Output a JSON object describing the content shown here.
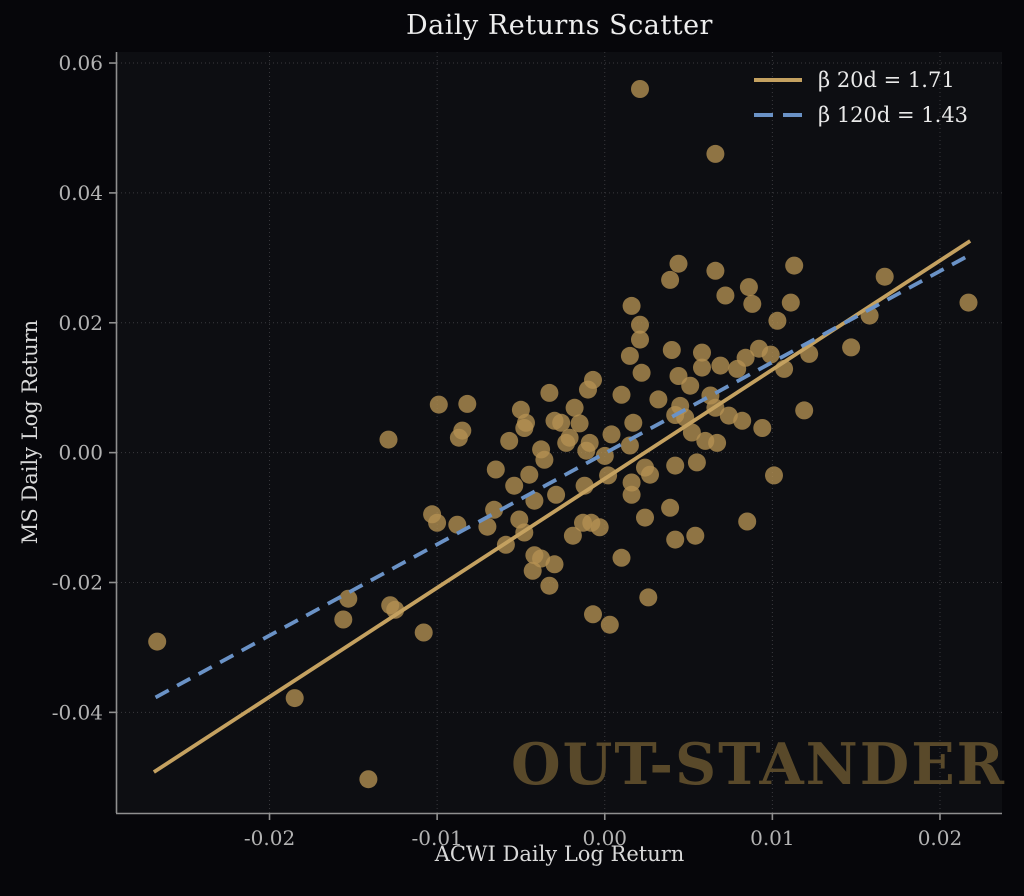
{
  "title": "Daily Returns Scatter",
  "watermark": "OUT-STANDER",
  "colors": {
    "background": "#06060a",
    "plot_background": "#0d0e12",
    "grid": "#3a3a3e",
    "spine": "#8f8f8f",
    "tick_label": "#b3b3b3",
    "axis_label": "#d9d9d9",
    "title": "#ededed",
    "point": "#b59152",
    "beta20_line": "#c4a160",
    "beta120_line": "#6a92c6",
    "watermark": "#59492a"
  },
  "chart_data": {
    "type": "scatter",
    "title": "Daily Returns Scatter",
    "xlabel": "ACWI Daily Log Return",
    "ylabel": "MS Daily Log Return",
    "xlim": [
      -0.0291,
      0.0237
    ],
    "ylim": [
      -0.0555,
      0.0617
    ],
    "xticks": [
      -0.02,
      -0.01,
      0.0,
      0.01,
      0.02
    ],
    "xtick_labels": [
      "-0.02",
      "-0.01",
      "0.00",
      "0.01",
      "0.02"
    ],
    "yticks": [
      0.06,
      0.04,
      0.02,
      0.0,
      -0.02,
      -0.04
    ],
    "ytick_labels": [
      "0.06",
      "0.04",
      "0.02",
      "0.00",
      "-0.02",
      "-0.04"
    ],
    "grid": true,
    "legend_position": "upper right",
    "point_color": "#b59152",
    "point_opacity": 0.78,
    "points": [
      [
        0.0021,
        0.056
      ],
      [
        0.0044,
        0.0291
      ],
      [
        0.0039,
        0.0266
      ],
      [
        0.0016,
        0.0226
      ],
      [
        0.0021,
        0.0197
      ],
      [
        0.0021,
        0.0174
      ],
      [
        0.0015,
        0.0149
      ],
      [
        0.004,
        0.0158
      ],
      [
        0.0058,
        0.0154
      ],
      [
        0.0022,
        0.0123
      ],
      [
        0.0044,
        0.0118
      ],
      [
        0.0051,
        0.0103
      ],
      [
        -0.0007,
        0.0112
      ],
      [
        -0.001,
        0.0097
      ],
      [
        -0.0033,
        0.0092
      ],
      [
        0.001,
        0.0089
      ],
      [
        -0.0099,
        0.0074
      ],
      [
        -0.0082,
        0.0075
      ],
      [
        -0.005,
        0.0066
      ],
      [
        -0.0018,
        0.0069
      ],
      [
        0.0032,
        0.0082
      ],
      [
        0.0045,
        0.0072
      ],
      [
        0.0058,
        0.0131
      ],
      [
        -0.0047,
        0.0046
      ],
      [
        -0.003,
        0.0049
      ],
      [
        0.0017,
        0.0046
      ],
      [
        -0.0085,
        0.0034
      ],
      [
        0.0042,
        0.0058
      ],
      [
        0.0063,
        0.0088
      ],
      [
        -0.0087,
        0.0023
      ],
      [
        -0.0057,
        0.0018
      ],
      [
        -0.0048,
        0.0038
      ],
      [
        -0.0026,
        0.0046
      ],
      [
        -0.0023,
        0.0015
      ],
      [
        -0.0015,
        0.0045
      ],
      [
        0.0004,
        0.0028
      ],
      [
        0.0015,
        0.0011
      ],
      [
        0.0048,
        0.0054
      ],
      [
        0.0052,
        0.0031
      ],
      [
        0.006,
        0.0018
      ],
      [
        0.0066,
        0.046
      ],
      [
        0.0066,
        0.028
      ],
      [
        0.0072,
        0.0242
      ],
      [
        0.0086,
        0.0255
      ],
      [
        0.0088,
        0.0229
      ],
      [
        0.0113,
        0.0288
      ],
      [
        0.0111,
        0.0231
      ],
      [
        0.0103,
        0.0203
      ],
      [
        0.0167,
        0.0271
      ],
      [
        0.0158,
        0.0211
      ],
      [
        0.0217,
        0.0231
      ],
      [
        0.0092,
        0.016
      ],
      [
        0.0084,
        0.0146
      ],
      [
        0.0099,
        0.0151
      ],
      [
        0.0069,
        0.0134
      ],
      [
        0.0079,
        0.0129
      ],
      [
        0.0107,
        0.0129
      ],
      [
        0.0122,
        0.0152
      ],
      [
        0.0147,
        0.0162
      ],
      [
        0.0066,
        0.0069
      ],
      [
        0.0074,
        0.0057
      ],
      [
        0.0082,
        0.0049
      ],
      [
        0.0094,
        0.0038
      ],
      [
        0.0119,
        0.0065
      ],
      [
        -0.0038,
        0.0005
      ],
      [
        -0.0021,
        0.0023
      ],
      [
        -0.0009,
        0.0015
      ],
      [
        -0.0011,
        0.0003
      ],
      [
        0.0,
        -0.0005
      ],
      [
        -0.0065,
        -0.0026
      ],
      [
        -0.0045,
        -0.0034
      ],
      [
        -0.0054,
        -0.0051
      ],
      [
        -0.0042,
        -0.0074
      ],
      [
        -0.0036,
        -0.0011
      ],
      [
        -0.0029,
        -0.0065
      ],
      [
        -0.0012,
        -0.0051
      ],
      [
        0.0002,
        -0.0035
      ],
      [
        0.0016,
        -0.0046
      ],
      [
        0.0016,
        -0.0065
      ],
      [
        0.0024,
        -0.0023
      ],
      [
        0.0027,
        -0.0034
      ],
      [
        0.0042,
        -0.002
      ],
      [
        0.0055,
        -0.0015
      ],
      [
        -0.0103,
        -0.0095
      ],
      [
        -0.01,
        -0.0108
      ],
      [
        -0.0088,
        -0.0111
      ],
      [
        -0.007,
        -0.0114
      ],
      [
        -0.0066,
        -0.0088
      ],
      [
        -0.0051,
        -0.0103
      ],
      [
        -0.0048,
        -0.0123
      ],
      [
        -0.0059,
        -0.0142
      ],
      [
        -0.0042,
        -0.0158
      ],
      [
        -0.0038,
        -0.0163
      ],
      [
        -0.003,
        -0.0172
      ],
      [
        -0.0043,
        -0.0182
      ],
      [
        -0.0033,
        -0.0205
      ],
      [
        -0.0019,
        -0.0128
      ],
      [
        -0.0013,
        -0.0108
      ],
      [
        -0.0008,
        -0.0108
      ],
      [
        -0.0003,
        -0.0115
      ],
      [
        0.001,
        -0.0162
      ],
      [
        0.0024,
        -0.01
      ],
      [
        0.0026,
        -0.0223
      ],
      [
        -0.0007,
        -0.0249
      ],
      [
        0.0003,
        -0.0265
      ],
      [
        0.0039,
        -0.0085
      ],
      [
        0.0042,
        -0.0134
      ],
      [
        0.0054,
        -0.0128
      ],
      [
        -0.0108,
        -0.0277
      ],
      [
        0.0067,
        0.0015
      ],
      [
        0.0101,
        -0.0035
      ],
      [
        0.0085,
        -0.0106
      ],
      [
        -0.0129,
        0.002
      ],
      [
        -0.0267,
        -0.0291
      ],
      [
        -0.0153,
        -0.0225
      ],
      [
        -0.0156,
        -0.0257
      ],
      [
        -0.0128,
        -0.0235
      ],
      [
        -0.0125,
        -0.0242
      ],
      [
        -0.0185,
        -0.0378
      ],
      [
        -0.0141,
        -0.0503
      ]
    ],
    "series": [
      {
        "name": "β 20d = 1.71",
        "type": "line",
        "style": "solid",
        "color": "#c4a160",
        "x": [
          -0.0269,
          0.0218
        ],
        "y": [
          -0.0492,
          0.0326
        ]
      },
      {
        "name": "β 120d = 1.43",
        "type": "line",
        "style": "dashed",
        "color": "#6a92c6",
        "x": [
          -0.0268,
          0.0216
        ],
        "y": [
          -0.0377,
          0.0302
        ]
      }
    ]
  }
}
